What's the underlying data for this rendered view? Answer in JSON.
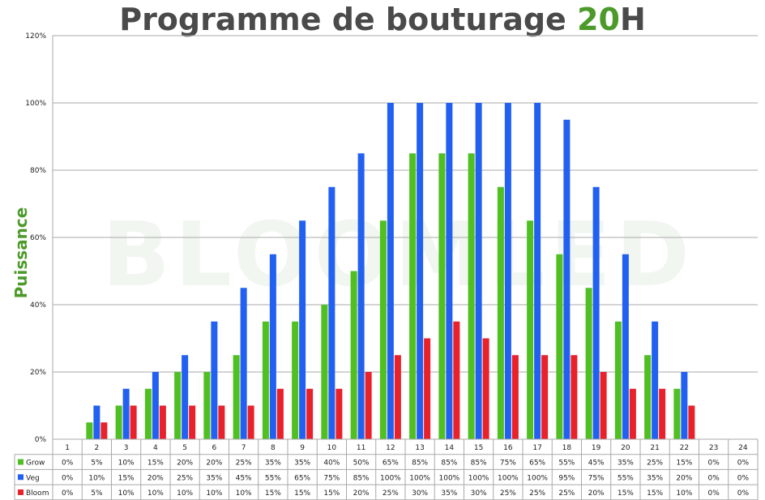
{
  "title": {
    "main": "Programme de bouturage ",
    "accent": "20",
    "tail": "H"
  },
  "watermark": "BLOOMLED",
  "colors": {
    "title": "#4a4a4a",
    "accent": "#4c9a2a",
    "grid": "#a9a9a9",
    "axis_title": "#4c9a2a"
  },
  "chart_data": {
    "type": "bar",
    "ylabel": "Puissance",
    "ylim": [
      0,
      120
    ],
    "y_ticks": [
      "0%",
      "20%",
      "40%",
      "60%",
      "80%",
      "100%",
      "120%"
    ],
    "categories": [
      "1",
      "2",
      "3",
      "4",
      "5",
      "6",
      "7",
      "8",
      "9",
      "10",
      "11",
      "12",
      "13",
      "14",
      "15",
      "16",
      "17",
      "18",
      "19",
      "20",
      "21",
      "22",
      "23",
      "24"
    ],
    "series": [
      {
        "name": "Grow",
        "color": "#4fbf22",
        "values": [
          0,
          5,
          10,
          15,
          20,
          20,
          25,
          35,
          35,
          40,
          50,
          65,
          85,
          85,
          85,
          75,
          65,
          55,
          45,
          35,
          25,
          15,
          0,
          0
        ]
      },
      {
        "name": "Veg",
        "color": "#2160f0",
        "values": [
          0,
          10,
          15,
          20,
          25,
          35,
          45,
          55,
          65,
          75,
          85,
          100,
          100,
          100,
          100,
          100,
          100,
          95,
          75,
          55,
          35,
          20,
          0,
          0
        ]
      },
      {
        "name": "Bloom",
        "color": "#e8212b",
        "values": [
          0,
          5,
          10,
          10,
          10,
          10,
          10,
          15,
          15,
          15,
          20,
          25,
          30,
          35,
          30,
          25,
          25,
          25,
          20,
          15,
          15,
          10,
          0,
          0
        ]
      }
    ]
  }
}
